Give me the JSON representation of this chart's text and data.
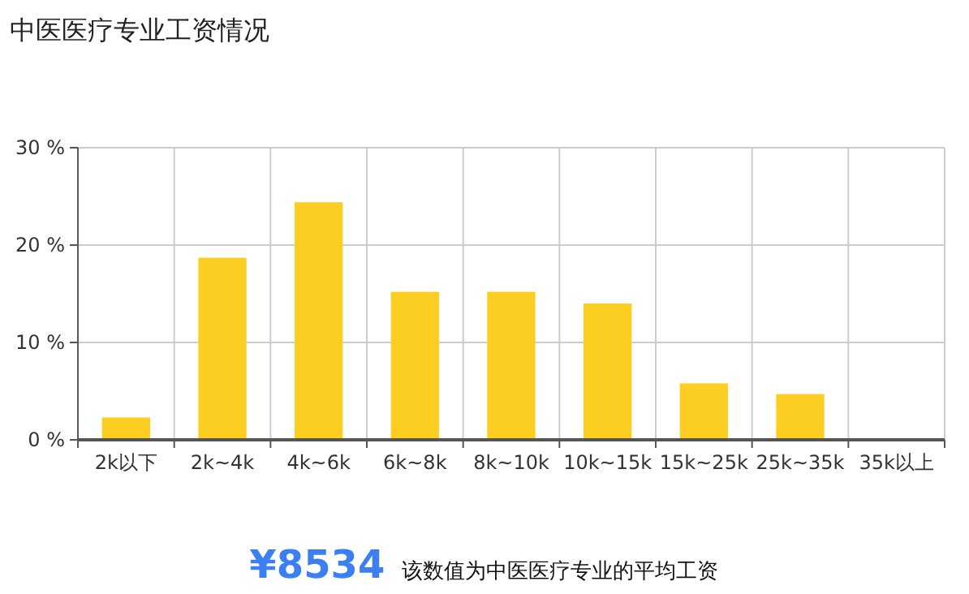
{
  "chart_data": {
    "type": "bar",
    "title": "中医医疗专业工资情况",
    "categories": [
      "2k以下",
      "2k~4k",
      "4k~6k",
      "6k~8k",
      "8k~10k",
      "10k~15k",
      "15k~25k",
      "25k~35k",
      "35k以上"
    ],
    "values": [
      2.3,
      18.7,
      24.4,
      15.2,
      15.2,
      14.0,
      5.8,
      4.7,
      0
    ],
    "color": "#fdce22",
    "ylim": [
      0,
      30
    ],
    "yticks": [
      {
        "value": 0,
        "label": "0 %"
      },
      {
        "value": 10,
        "label": "10 %"
      },
      {
        "value": 20,
        "label": "20 %"
      },
      {
        "value": 30,
        "label": "30 %"
      }
    ],
    "grid": true,
    "annotations": [
      "¥8534",
      "该数值为中医医疗专业的平均工资"
    ]
  }
}
